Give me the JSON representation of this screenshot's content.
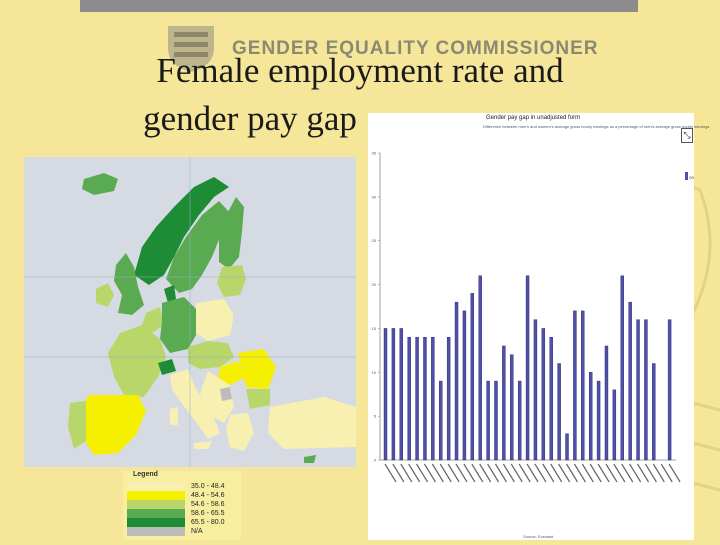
{
  "header": {
    "organization": "GENDER EQUALITY COMMISSIONER"
  },
  "slide": {
    "title_line1": "Female employment rate and",
    "title_line2": "gender pay gap"
  },
  "map": {
    "legend_title": "Legend",
    "legend": [
      {
        "label": "35.0 - 48.4",
        "color": "#f7f0b0"
      },
      {
        "label": "48.4 - 54.6",
        "color": "#f5f000"
      },
      {
        "label": "54.6 - 58.6",
        "color": "#b9d66a"
      },
      {
        "label": "58.6 - 65.5",
        "color": "#5aaa52"
      },
      {
        "label": "65.5 - 80.0",
        "color": "#1d8c35"
      },
      {
        "label": "N/A",
        "color": "#bcbcbc"
      }
    ]
  },
  "chart": {
    "title": "Gender pay gap in unadjusted form",
    "subtitle": "Difference between men's and women's average gross hourly earnings as a percentage of men's average gross hourly earnings",
    "series_name": "2005",
    "bar_color": "#5050a8",
    "source": "Source: Eurostat"
  },
  "chart_data": {
    "type": "bar",
    "ylim": [
      0,
      35
    ],
    "yticks": [
      0,
      5,
      10,
      15,
      20,
      25,
      30,
      35
    ],
    "series": [
      {
        "name": "2005",
        "values": [
          15,
          15,
          15,
          14,
          14,
          14,
          14,
          9,
          14,
          18,
          17,
          19,
          21,
          9,
          9,
          13,
          12,
          9,
          21,
          16,
          15,
          14,
          11,
          3,
          17,
          17,
          10,
          9,
          13,
          8,
          21,
          18,
          16,
          16,
          11,
          0,
          16
        ]
      }
    ]
  }
}
